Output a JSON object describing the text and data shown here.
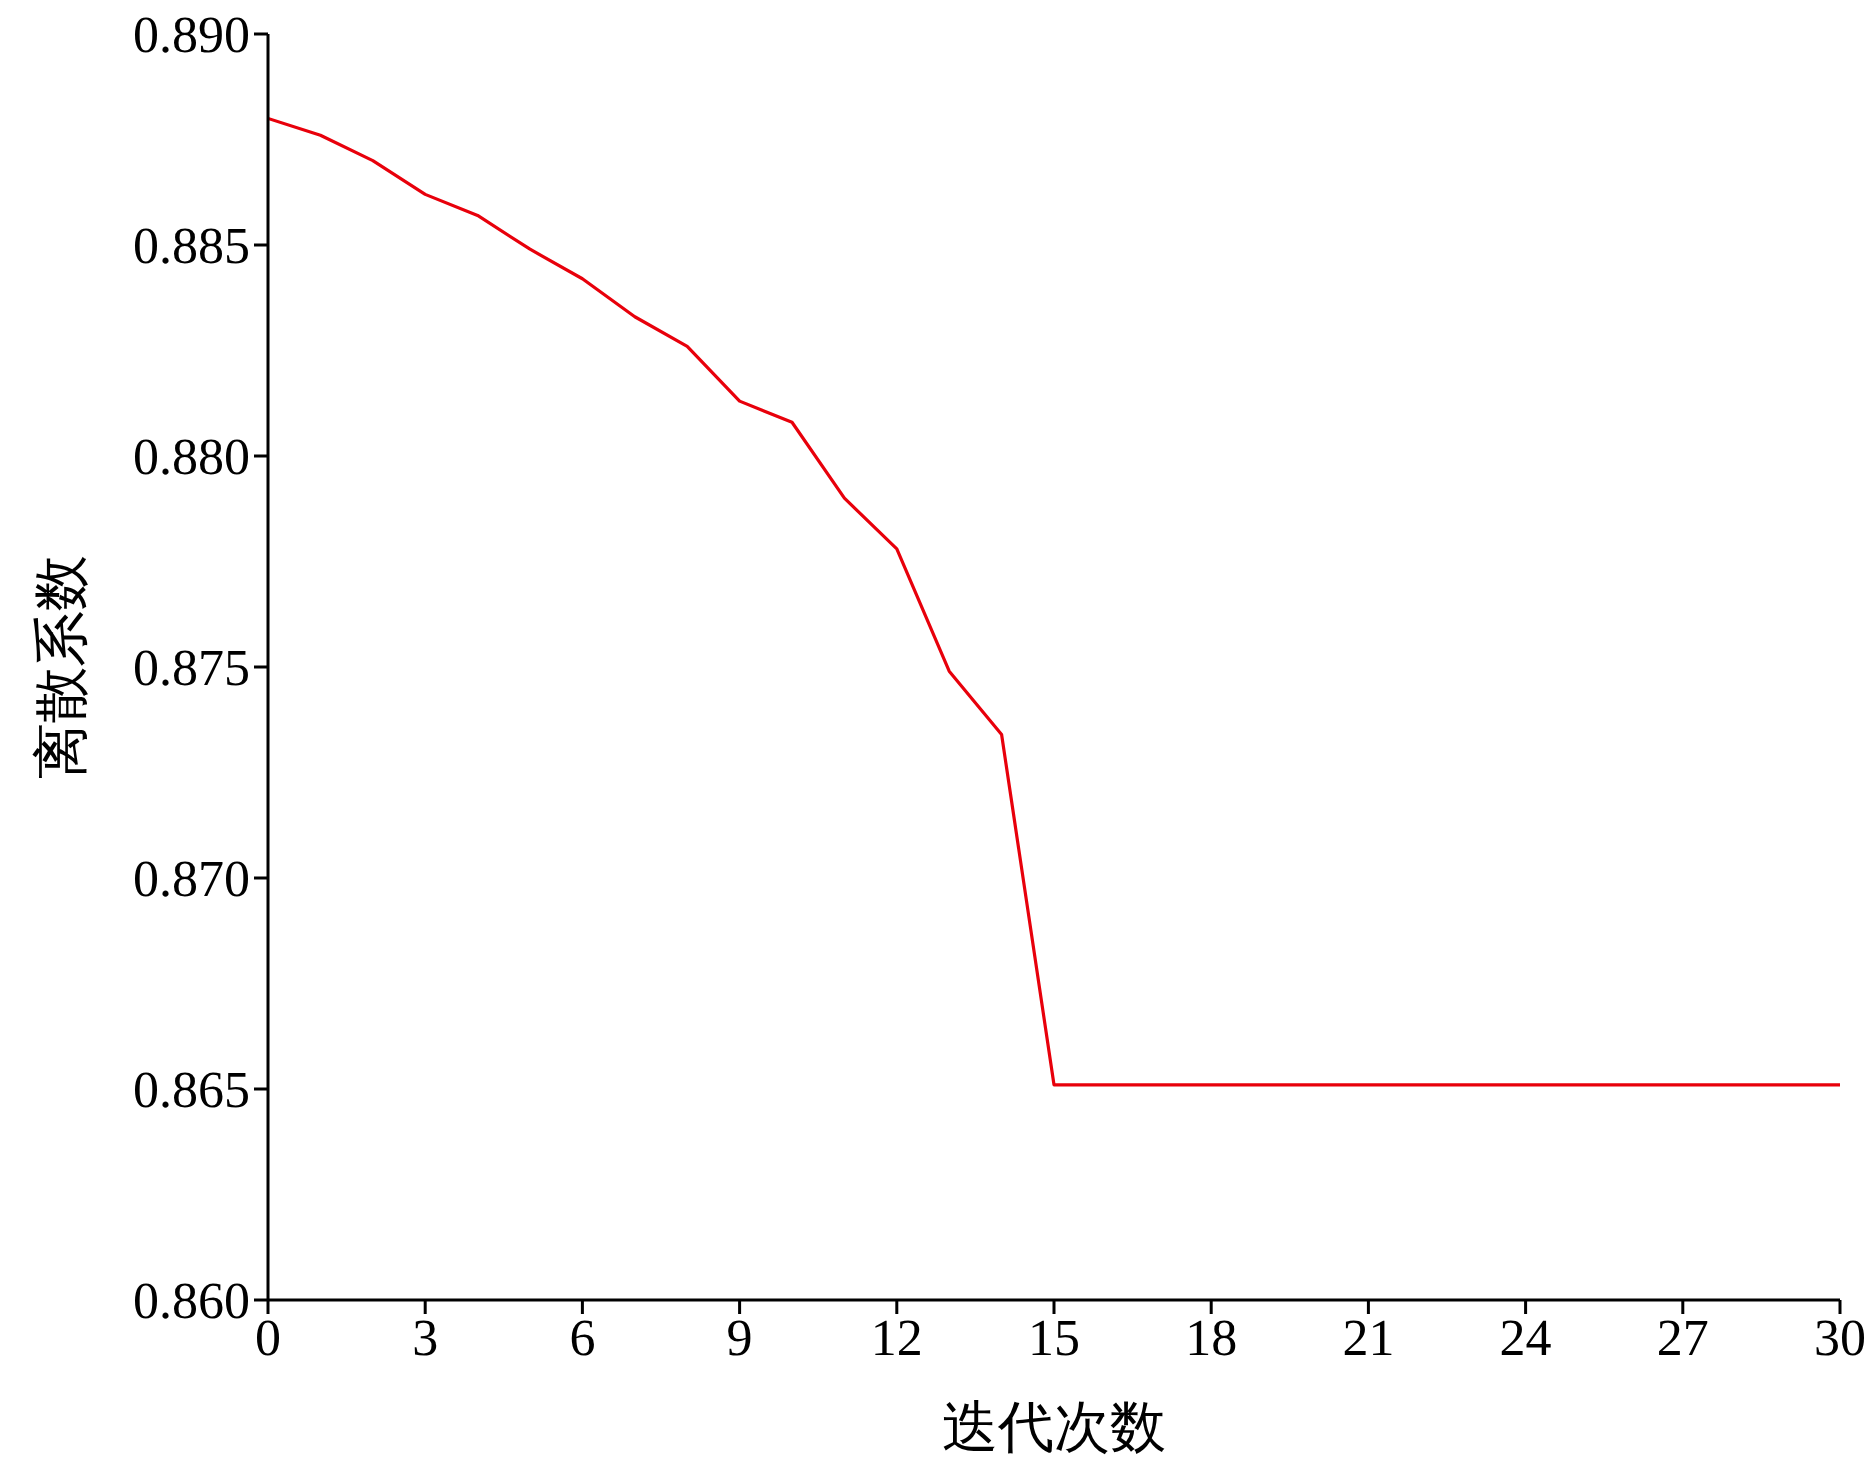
{
  "chart_data": {
    "type": "line",
    "xlabel": "迭代次数",
    "ylabel": "离散系数",
    "x": [
      0,
      1,
      2,
      3,
      4,
      5,
      6,
      7,
      8,
      9,
      10,
      11,
      12,
      13,
      14,
      15,
      16,
      17,
      18,
      19,
      20,
      21,
      22,
      23,
      24,
      25,
      26,
      27,
      28,
      29,
      30
    ],
    "series": [
      {
        "color": "#e8000b",
        "values": [
          0.888,
          0.8876,
          0.887,
          0.8862,
          0.8857,
          0.8849,
          0.8842,
          0.8833,
          0.8826,
          0.8813,
          0.8808,
          0.879,
          0.8778,
          0.8749,
          0.8734,
          0.8651,
          0.8651,
          0.8651,
          0.8651,
          0.8651,
          0.8651,
          0.8651,
          0.8651,
          0.8651,
          0.8651,
          0.8651,
          0.8651,
          0.8651,
          0.8651,
          0.8651,
          0.8651
        ]
      }
    ],
    "xlim": [
      0,
      30
    ],
    "xticks": [
      0,
      3,
      6,
      9,
      12,
      15,
      18,
      21,
      24,
      27,
      30
    ],
    "ylim": [
      0.86,
      0.89
    ],
    "yticks": [
      {
        "value": 0.86,
        "label": "0.860"
      },
      {
        "value": 0.865,
        "label": "0.865"
      },
      {
        "value": 0.87,
        "label": "0.870"
      },
      {
        "value": 0.875,
        "label": "0.875"
      },
      {
        "value": 0.88,
        "label": "0.880"
      },
      {
        "value": 0.885,
        "label": "0.885"
      },
      {
        "value": 0.89,
        "label": "0.890"
      }
    ],
    "grid": false,
    "legend": false,
    "marker": "none",
    "line_style": "solid"
  }
}
